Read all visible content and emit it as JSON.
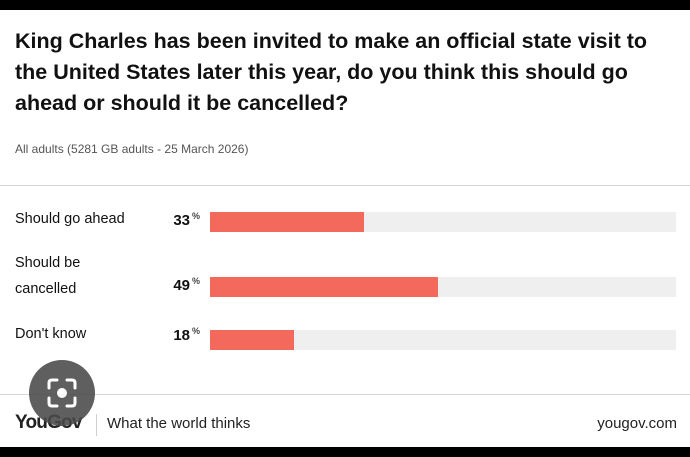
{
  "title": "King Charles has been invited to make an official state visit to the United States later this year, do you think this should go ahead or should it be cancelled?",
  "subtitle": "All adults (5281 GB adults - 25 March 2026)",
  "chart_data": {
    "type": "bar",
    "orientation": "horizontal",
    "title": "King Charles has been invited to make an official state visit to the United States later this year, do you think this should go ahead or should it be cancelled?",
    "subtitle": "All adults (5281 GB adults - 25 March 2026)",
    "categories": [
      "Should go ahead",
      "Should be cancelled",
      "Don't know"
    ],
    "values": [
      33,
      49,
      18
    ],
    "value_labels": [
      "33",
      "49",
      "18"
    ],
    "unit": "%",
    "xlim": [
      0,
      100
    ],
    "grid": false,
    "bar_color": "#f36a5c",
    "track_color": "#efefef"
  },
  "labels": {
    "row1_line1": "Should go ahead",
    "row2_line1": "Should be",
    "row2_line2": "cancelled",
    "row3_line1": "Don't know"
  },
  "footer": {
    "logo": "YouGov",
    "tagline": "What the world thinks",
    "site": "yougov.com"
  },
  "overlay": {
    "icon": "camera-lens-icon"
  }
}
